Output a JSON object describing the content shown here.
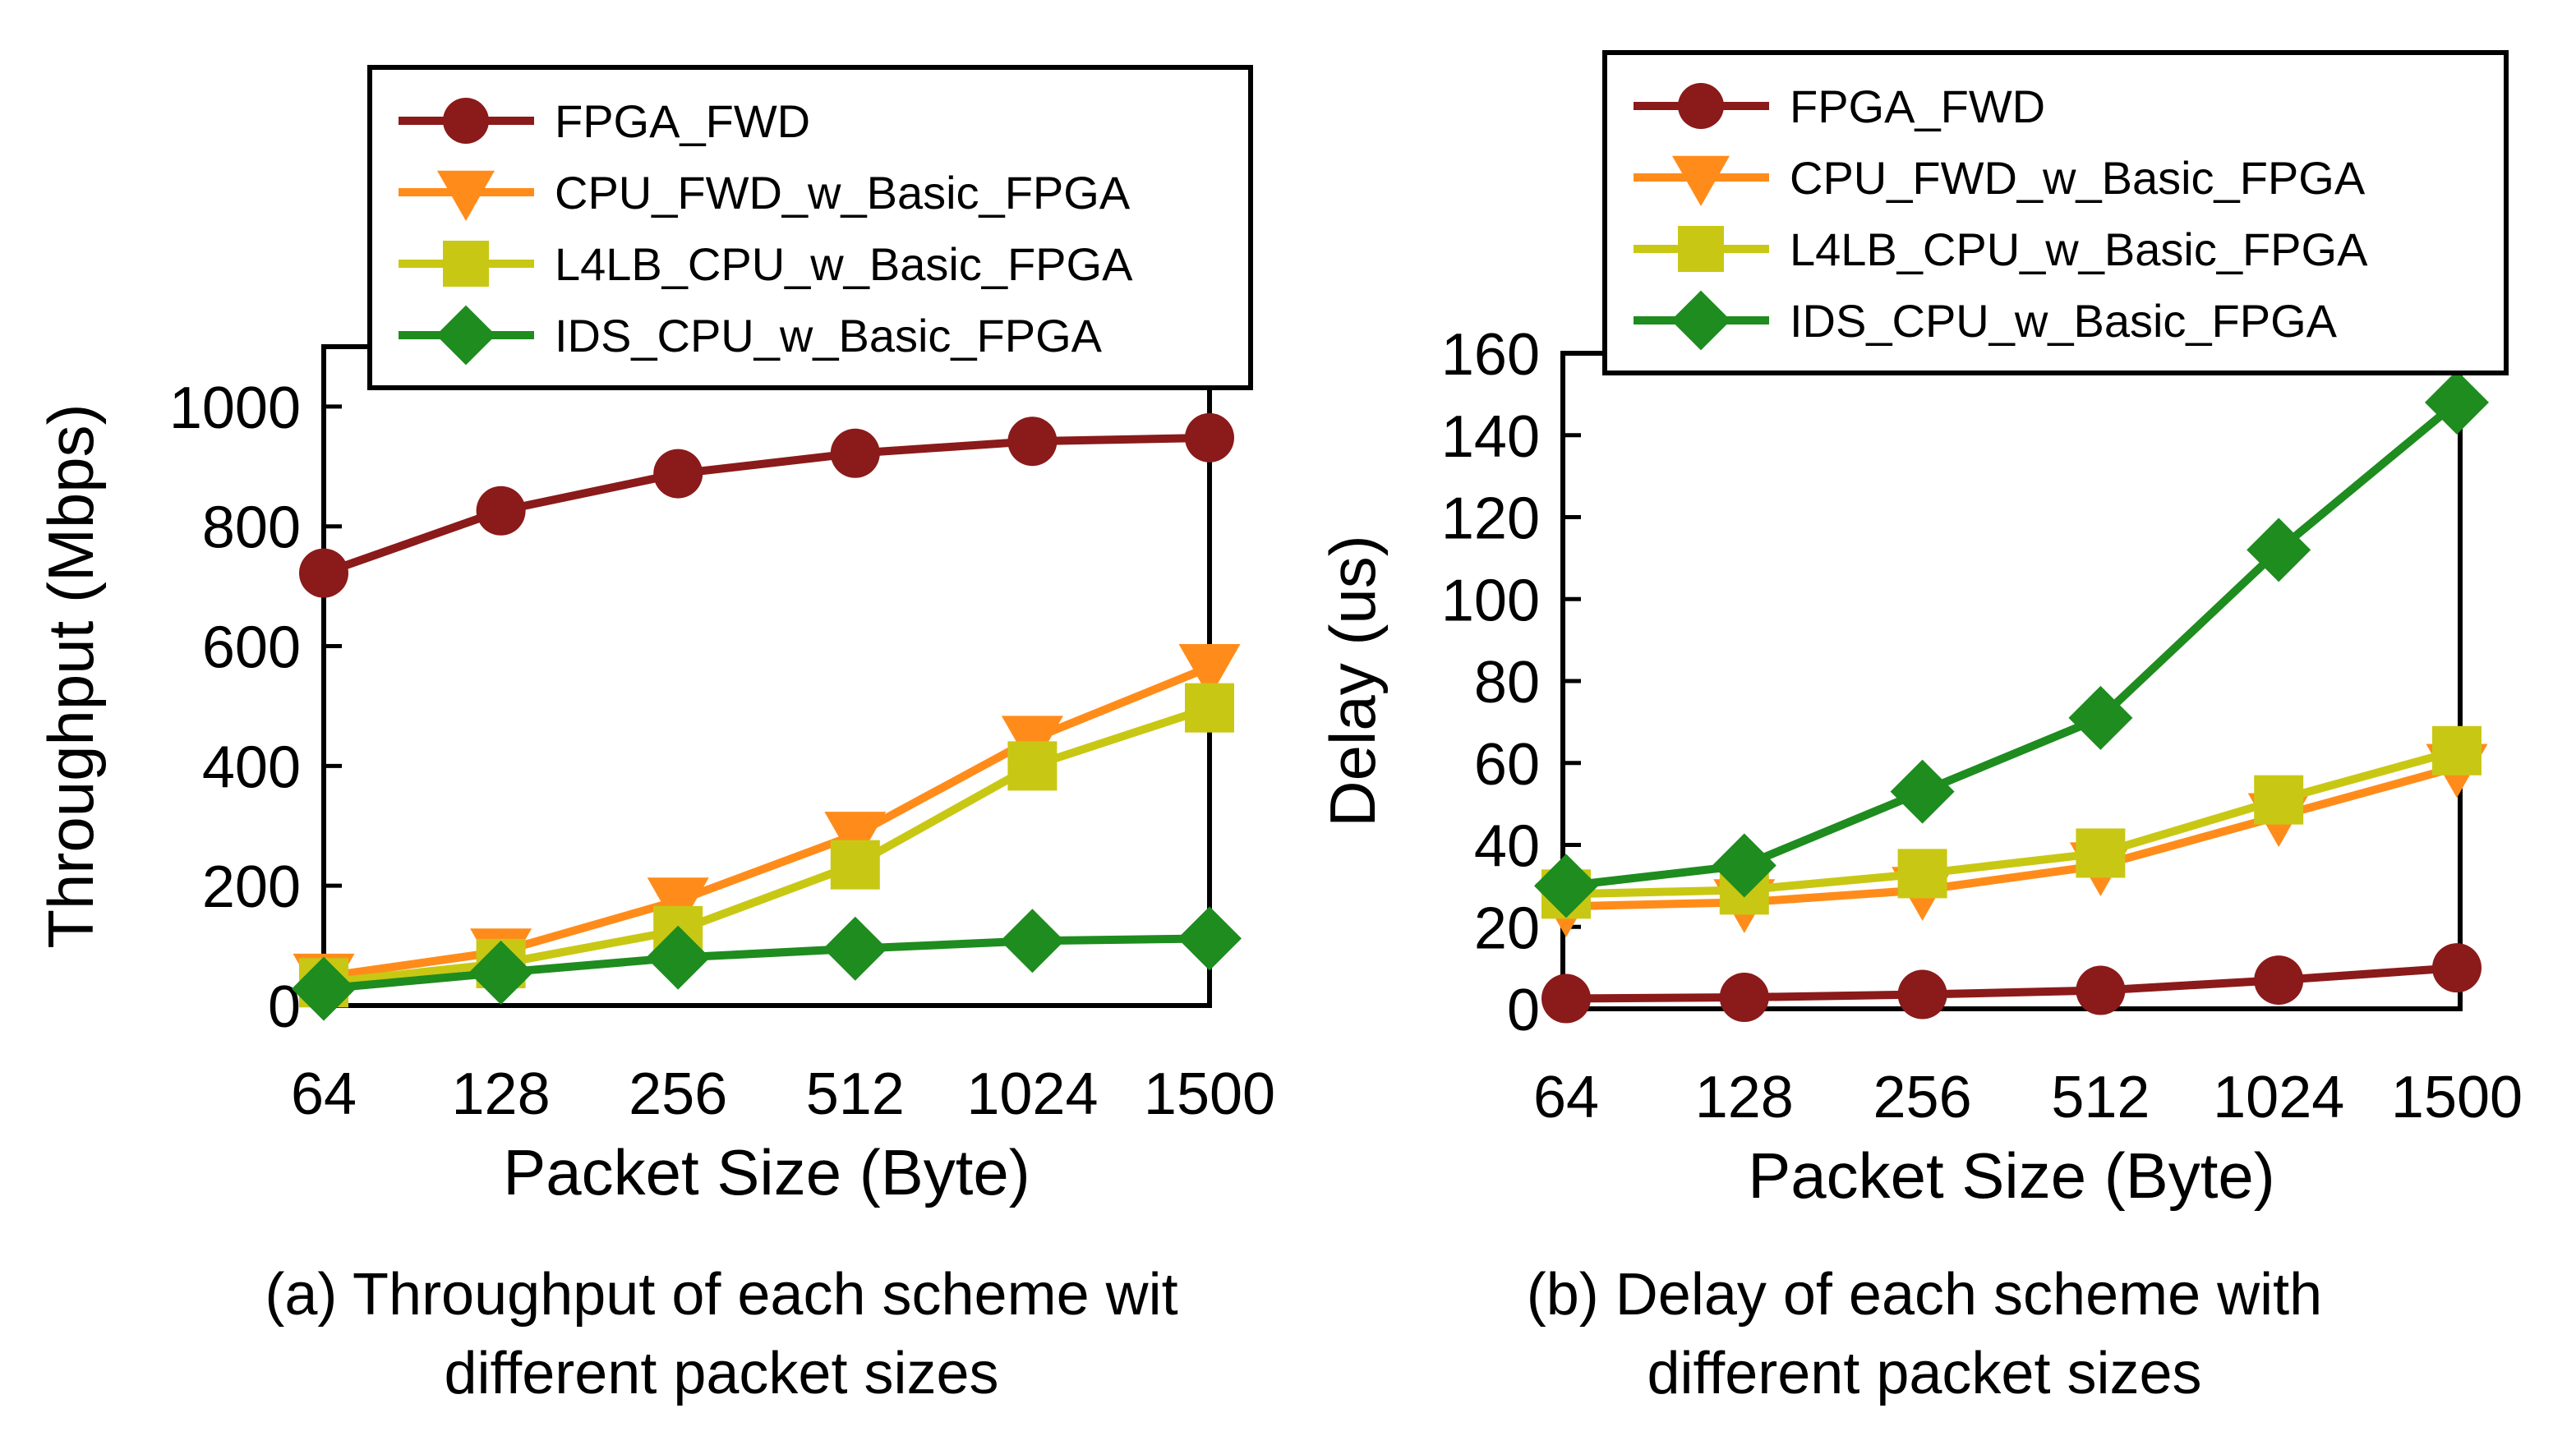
{
  "chart_data": [
    {
      "type": "line",
      "title": "",
      "xlabel": "Packet Size (Byte)",
      "ylabel": "Throughput (Mbps)",
      "categories": [
        "64",
        "128",
        "256",
        "512",
        "1024",
        "1500"
      ],
      "ylim": [
        0,
        1100
      ],
      "yticks": [
        "0",
        "200",
        "400",
        "600",
        "800",
        "1000"
      ],
      "legend_position": "top",
      "caption_lines": [
        "(a) Throughput of each scheme wit",
        "different packet sizes"
      ],
      "series": [
        {
          "name": "FPGA_FWD",
          "color": "#8B1A1A",
          "marker": "circle",
          "values": [
            722,
            826,
            888,
            922,
            942,
            948
          ]
        },
        {
          "name": "CPU_FWD_w_Basic_FPGA",
          "color": "#FF8C1A",
          "marker": "triangle-down",
          "values": [
            48,
            90,
            175,
            285,
            445,
            565
          ]
        },
        {
          "name": "L4LB_CPU_w_Basic_FPGA",
          "color": "#C8C814",
          "marker": "square",
          "values": [
            38,
            70,
            125,
            235,
            400,
            497
          ]
        },
        {
          "name": "IDS_CPU_w_Basic_FPGA",
          "color": "#1E8C1E",
          "marker": "diamond",
          "values": [
            28,
            55,
            80,
            95,
            108,
            112
          ]
        }
      ]
    },
    {
      "type": "line",
      "title": "",
      "xlabel": "Packet Size (Byte)",
      "ylabel": "Delay (us)",
      "categories": [
        "64",
        "128",
        "256",
        "512",
        "1024",
        "1500"
      ],
      "ylim": [
        0,
        160
      ],
      "yticks": [
        "0",
        "20",
        "40",
        "60",
        "80",
        "100",
        "120",
        "140",
        "160"
      ],
      "legend_position": "top",
      "caption_lines": [
        "(b) Delay of each scheme with",
        "different packet sizes"
      ],
      "series": [
        {
          "name": "FPGA_FWD",
          "color": "#8B1A1A",
          "marker": "circle",
          "values": [
            2.5,
            2.8,
            3.5,
            4.5,
            7.0,
            10.0
          ]
        },
        {
          "name": "CPU_FWD_w_Basic_FPGA",
          "color": "#FF8C1A",
          "marker": "triangle-down",
          "values": [
            25,
            26,
            29,
            35,
            47,
            59
          ]
        },
        {
          "name": "L4LB_CPU_w_Basic_FPGA",
          "color": "#C8C814",
          "marker": "square",
          "values": [
            28,
            29,
            33,
            38,
            51,
            63
          ]
        },
        {
          "name": "IDS_CPU_w_Basic_FPGA",
          "color": "#1E8C1E",
          "marker": "diamond",
          "values": [
            30,
            35,
            53,
            71,
            112,
            148
          ]
        }
      ]
    }
  ]
}
